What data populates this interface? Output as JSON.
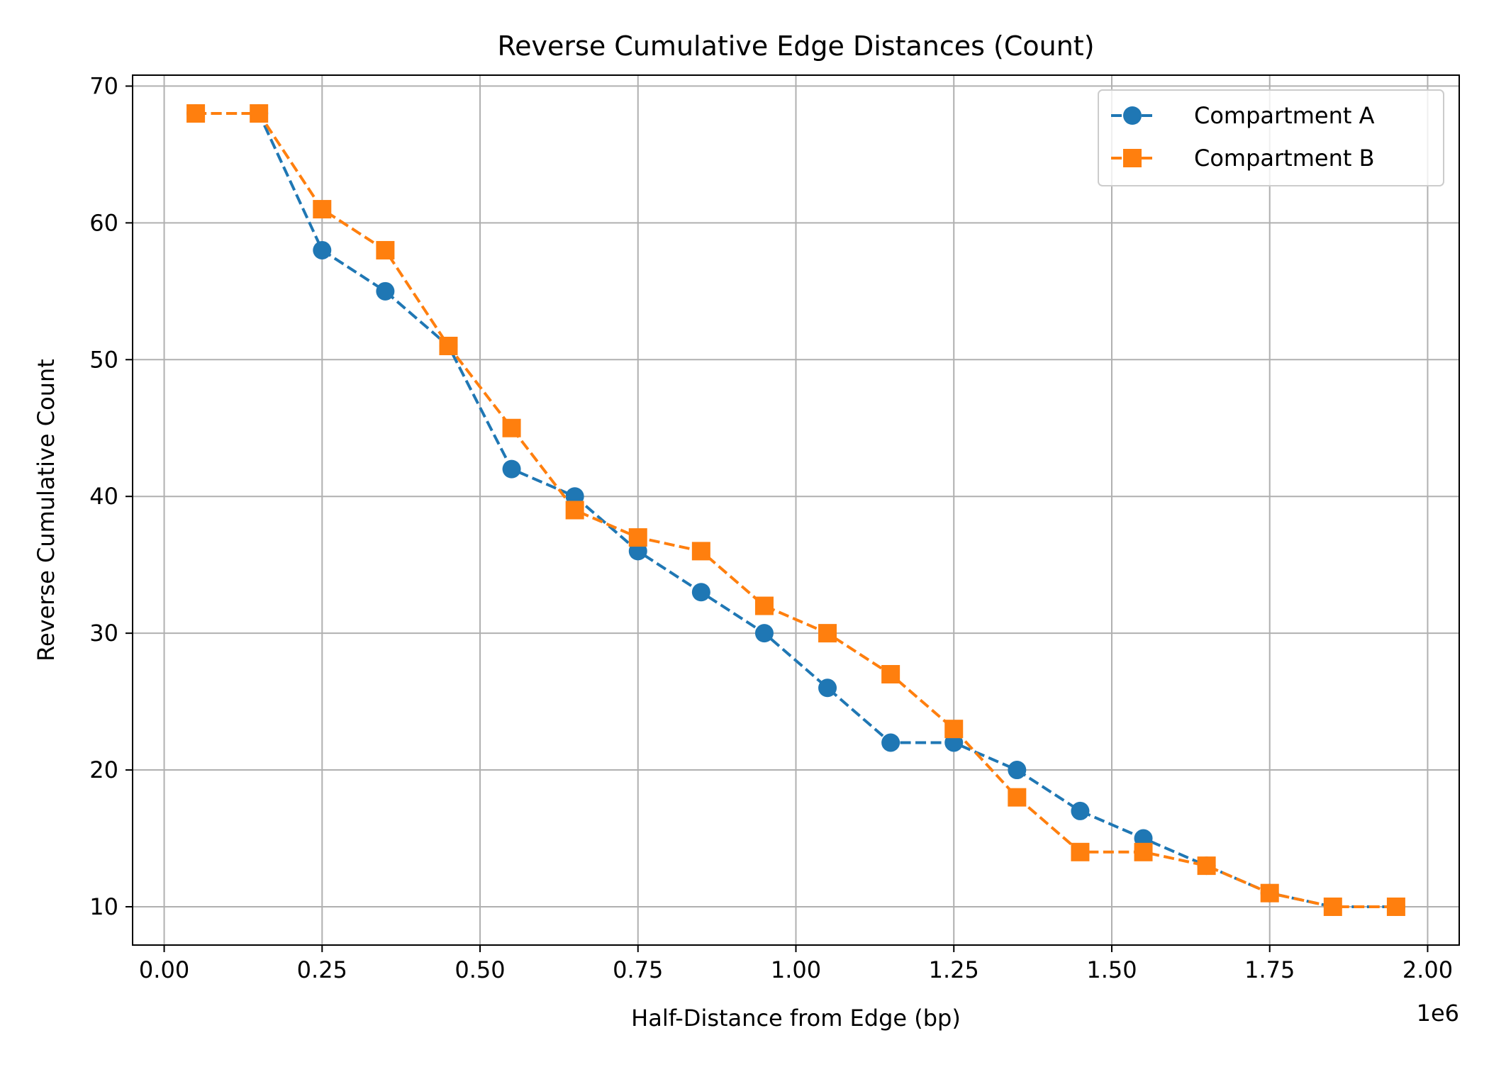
{
  "chart_data": {
    "type": "line",
    "title": "Reverse Cumulative Edge Distances (Count)",
    "xlabel": "Half-Distance from Edge (bp)",
    "ylabel": "Reverse Cumulative Count",
    "x_offset_label": "1e6",
    "x_scale_factor": 1000000,
    "xlim": [
      -50000,
      2050000
    ],
    "ylim": [
      7.2,
      70.8
    ],
    "xticks": [
      0,
      250000,
      500000,
      750000,
      1000000,
      1250000,
      1500000,
      1750000,
      2000000
    ],
    "xtick_labels": [
      "0.00",
      "0.25",
      "0.50",
      "0.75",
      "1.00",
      "1.25",
      "1.50",
      "1.75",
      "2.00"
    ],
    "yticks": [
      10,
      20,
      30,
      40,
      50,
      60,
      70
    ],
    "ytick_labels": [
      "10",
      "20",
      "30",
      "40",
      "50",
      "60",
      "70"
    ],
    "grid": true,
    "legend_position": "top-right",
    "x": [
      50000,
      150000,
      250000,
      350000,
      450000,
      550000,
      650000,
      750000,
      850000,
      950000,
      1050000,
      1150000,
      1250000,
      1350000,
      1450000,
      1550000,
      1650000,
      1750000,
      1850000,
      1950000
    ],
    "series": [
      {
        "name": "Compartment A",
        "color": "#1f77b4",
        "marker": "circle",
        "line_style": "dashed",
        "values": [
          68,
          68,
          58,
          55,
          51,
          42,
          40,
          36,
          33,
          30,
          26,
          22,
          22,
          20,
          17,
          15,
          13,
          11,
          10,
          10
        ]
      },
      {
        "name": "Compartment B",
        "color": "#ff7f0e",
        "marker": "square",
        "line_style": "dashed",
        "values": [
          68,
          68,
          61,
          58,
          51,
          45,
          39,
          37,
          36,
          32,
          30,
          27,
          23,
          18,
          14,
          14,
          13,
          11,
          10,
          10
        ]
      }
    ]
  }
}
